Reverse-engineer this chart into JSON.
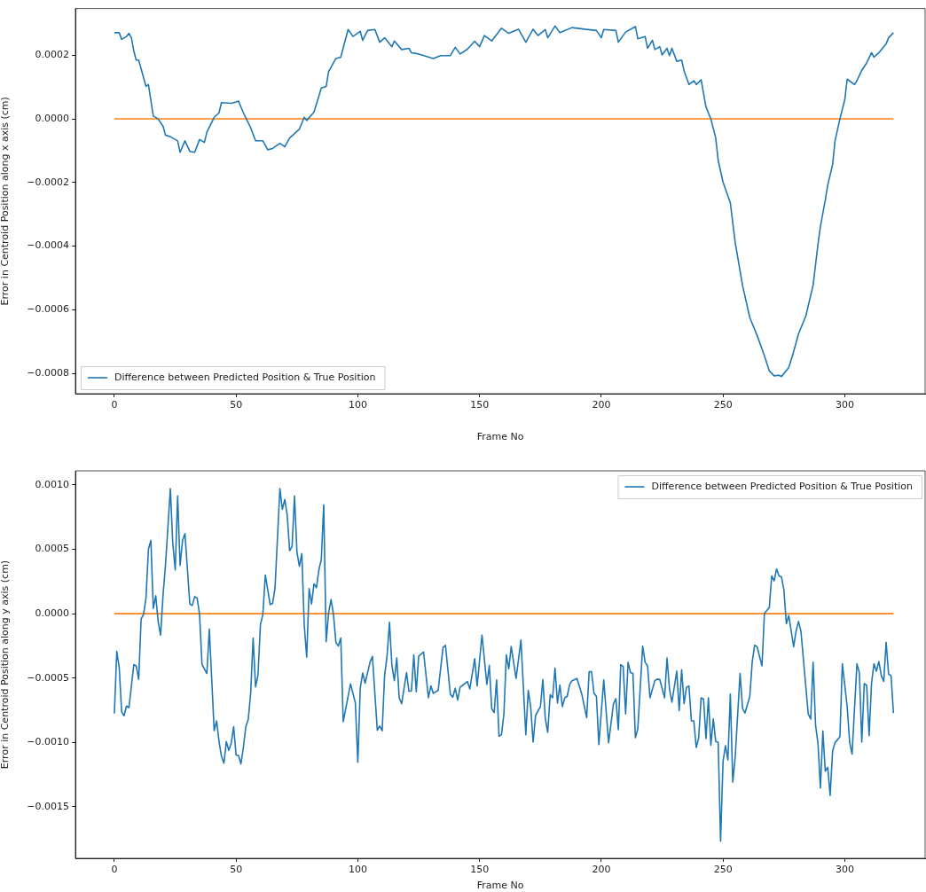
{
  "chart_data": [
    {
      "type": "line",
      "xlabel": "Frame No",
      "ylabel": "Error in Centroid Position along x axis (cm)",
      "legend": "bottom left",
      "xlim": [
        -16,
        333
      ],
      "ylim": [
        -0.000864,
        0.000347
      ],
      "xticks": [
        0,
        50,
        100,
        150,
        200,
        250,
        300
      ],
      "yticks": [
        {
          "value": -0.0008,
          "label": "−0.0008"
        },
        {
          "value": -0.0006,
          "label": "−0.0006"
        },
        {
          "value": -0.0004,
          "label": "−0.0004"
        },
        {
          "value": -0.0002,
          "label": "−0.0002"
        },
        {
          "value": 0,
          "label": "0.0000"
        },
        {
          "value": 0.0002,
          "label": "0.0002"
        }
      ],
      "series": [
        {
          "name": "Difference between Predicted Position & True Position",
          "color": "#1f77b4",
          "x": [
            0,
            2,
            3,
            5,
            6,
            7,
            8,
            9,
            10,
            13,
            14,
            16,
            18,
            20,
            21,
            23,
            26,
            27,
            29,
            31,
            33,
            35,
            37,
            38,
            41,
            43,
            44,
            48,
            50,
            51,
            53,
            56,
            58,
            61,
            63,
            65,
            68,
            70,
            72,
            76,
            78,
            79,
            82,
            85,
            87,
            88,
            91,
            93,
            96,
            98,
            101,
            102,
            104,
            107,
            109,
            111,
            114,
            115,
            118,
            121,
            122,
            125,
            131,
            134,
            138,
            140,
            142,
            145,
            148,
            150,
            152,
            155,
            159,
            162,
            166,
            169,
            172,
            174,
            177,
            178,
            181,
            183,
            188,
            193,
            198,
            200,
            201,
            206,
            207,
            210,
            214,
            215,
            218,
            219,
            221,
            222,
            224,
            225,
            227,
            228,
            229,
            231,
            233,
            234,
            236,
            238,
            239,
            241,
            243,
            245,
            247,
            248,
            250,
            253,
            255,
            258,
            261,
            264,
            267,
            269,
            271,
            273,
            274,
            277,
            279,
            281,
            284,
            287,
            289,
            290,
            292,
            293,
            295,
            296,
            298,
            300,
            301,
            304,
            305,
            307,
            309,
            311,
            312,
            314,
            317,
            318,
            320
          ],
          "values": [
            0.000271,
            0.000271,
            0.00025,
            0.000259,
            0.000269,
            0.000255,
            0.000213,
            0.000185,
            0.000185,
            0.000102,
            0.000108,
            9e-06,
            0,
            -2.3e-05,
            -5.1e-05,
            -5.6e-05,
            -6.9e-05,
            -0.000105,
            -6.9e-05,
            -0.000102,
            -0.000105,
            -6.5e-05,
            -7.4e-05,
            -4.2e-05,
            5e-06,
            1.9e-05,
            5.1e-05,
            4.9e-05,
            5.3e-05,
            5.6e-05,
            1.9e-05,
            -2.8e-05,
            -6.9e-05,
            -6.9e-05,
            -9.7e-05,
            -9.3e-05,
            -7.7e-05,
            -8.8e-05,
            -6e-05,
            -3.2e-05,
            5e-06,
            -5e-06,
            2.1e-05,
            9.7e-05,
            0.000102,
            0.000148,
            0.00019,
            0.000194,
            0.000281,
            0.000259,
            0.000275,
            0.000247,
            0.000278,
            0.000281,
            0.000241,
            0.000255,
            0.000227,
            0.000245,
            0.000218,
            0.000222,
            0.000208,
            0.000204,
            0.00019,
            0.000199,
            0.000199,
            0.000225,
            0.000204,
            0.000219,
            0.000244,
            0.000227,
            0.000262,
            0.000245,
            0.000285,
            0.000269,
            0.000282,
            0.000241,
            0.000282,
            0.000262,
            0.000281,
            0.000255,
            0.000292,
            0.000271,
            0.000287,
            0.000282,
            0.000278,
            0.000255,
            0.000281,
            0.000278,
            0.000241,
            0.000273,
            0.00029,
            0.000252,
            0.000259,
            0.000222,
            0.000247,
            0.000218,
            0.000227,
            0.000201,
            0.000222,
            0.000199,
            0.000222,
            0.000181,
            0.000185,
            0.000151,
            0.000108,
            0.00012,
            0.000108,
            0.000123,
            3.7e-05,
            0,
            -6e-05,
            -0.00013,
            -0.000199,
            -0.000264,
            -0.000389,
            -0.000523,
            -0.000625,
            -0.000681,
            -0.000745,
            -0.000792,
            -0.000808,
            -0.000806,
            -0.00081,
            -0.000782,
            -0.000732,
            -0.000676,
            -0.00062,
            -0.000523,
            -0.000394,
            -0.000338,
            -0.000255,
            -0.000208,
            -0.000144,
            -6.9e-05,
            0,
            6e-05,
            0.000125,
            0.000108,
            0.00012,
            0.000153,
            0.000176,
            0.000208,
            0.000194,
            0.000208,
            0.000236,
            0.000255,
            0.000271
          ]
        },
        {
          "color": "#ff7f0e",
          "x": [
            0,
            320
          ],
          "values": [
            0,
            0
          ]
        }
      ]
    },
    {
      "type": "line",
      "xlabel": "Frame No",
      "ylabel": "Error in Centroid Position along y axis (cm)",
      "legend": "top right",
      "xlim": [
        -16,
        333
      ],
      "ylim": [
        -0.0019,
        0.00111
      ],
      "xticks": [
        0,
        50,
        100,
        150,
        200,
        250,
        300
      ],
      "yticks": [
        {
          "value": -0.0015,
          "label": "−0.0015"
        },
        {
          "value": -0.001,
          "label": "−0.0010"
        },
        {
          "value": -0.0005,
          "label": "−0.0005"
        },
        {
          "value": 0,
          "label": "0.0000"
        },
        {
          "value": 0.0005,
          "label": "0.0005"
        },
        {
          "value": 0.001,
          "label": "0.0010"
        }
      ],
      "series": [
        {
          "name": "Difference between Predicted Position & True Position",
          "color": "#1f77b4",
          "x": [
            0,
            1,
            2,
            3,
            4,
            5,
            6,
            8,
            9,
            10,
            11,
            12,
            13,
            14,
            15,
            16,
            17,
            18,
            19,
            20,
            21,
            23,
            24,
            25,
            26,
            27,
            28,
            29,
            31,
            32,
            33,
            34,
            35,
            36,
            38,
            39,
            41,
            42,
            43,
            44,
            45,
            46,
            47,
            48,
            49,
            50,
            51,
            52,
            53,
            54,
            55,
            56,
            57,
            58,
            59,
            60,
            61,
            62,
            64,
            65,
            66,
            68,
            69,
            70,
            71,
            72,
            73,
            74,
            75,
            76,
            77,
            78,
            79,
            80,
            81,
            82,
            83,
            84,
            85,
            86,
            87,
            88,
            89,
            90,
            91,
            92,
            93,
            94,
            97,
            99,
            100,
            101,
            102,
            103,
            105,
            106,
            108,
            109,
            110,
            111,
            112,
            113,
            114,
            115,
            116,
            117,
            118,
            120,
            121,
            122,
            123,
            124,
            125,
            127,
            129,
            130,
            131,
            133,
            135,
            136,
            138,
            139,
            140,
            141,
            142,
            145,
            146,
            148,
            149,
            151,
            153,
            154,
            155,
            156,
            157,
            158,
            159,
            160,
            161,
            162,
            163,
            165,
            167,
            169,
            170,
            171,
            172,
            173,
            175,
            176,
            177,
            178,
            179,
            180,
            181,
            182,
            183,
            184,
            185,
            186,
            187,
            188,
            190,
            192,
            194,
            195,
            196,
            197,
            198,
            199,
            201,
            203,
            205,
            206,
            207,
            208,
            209,
            210,
            211,
            212,
            213,
            214,
            215,
            217,
            218,
            219,
            220,
            222,
            223,
            224,
            226,
            227,
            228,
            229,
            231,
            232,
            233,
            234,
            235,
            236,
            237,
            238,
            239,
            240,
            241,
            242,
            243,
            244,
            245,
            246,
            247,
            248,
            249,
            250,
            251,
            252,
            253,
            254,
            255,
            257,
            258,
            259,
            261,
            262,
            263,
            264,
            266,
            267,
            269,
            270,
            271,
            272,
            273,
            274,
            275,
            276,
            277,
            279,
            280,
            281,
            282,
            285,
            286,
            287,
            288,
            289,
            290,
            291,
            292,
            293,
            294,
            295,
            296,
            298,
            299,
            301,
            302,
            303,
            305,
            306,
            307,
            308,
            309,
            310,
            311,
            312,
            313,
            314,
            315,
            316,
            317,
            318,
            319,
            320
          ],
          "values": [
            -0.000775,
            -0.000292,
            -0.000418,
            -0.000763,
            -0.000793,
            -0.000717,
            -0.000729,
            -0.000395,
            -0.000407,
            -0.00051,
            -3.9e-05,
            -5e-06,
            0.000122,
            0.000501,
            0.00057,
            4.1e-05,
            0.00014,
            -6.2e-05,
            -0.000166,
            0.000145,
            0.000375,
            0.000972,
            0.000547,
            0.00034,
            0.000915,
            0.000375,
            0.00057,
            0.000623,
            7.6e-05,
            6.4e-05,
            0.000133,
            0.000122,
            -5e-06,
            -0.000395,
            -0.000464,
            -0.00012,
            -0.000908,
            -0.000832,
            -0.000993,
            -0.001108,
            -0.001161,
            -0.000993,
            -0.001062,
            -0.001005,
            -0.000878,
            -0.001097,
            -0.001101,
            -0.001166,
            -0.001039,
            -0.000878,
            -0.000821,
            -0.000614,
            -0.000189,
            -0.000568,
            -0.000476,
            -8.5e-05,
            -5e-06,
            0.000301,
            7.1e-05,
            8e-05,
            0.000202,
            0.000972,
            0.000812,
            0.000887,
            0.000766,
            0.00049,
            0.000524,
            0.000915,
            0.000478,
            0.000368,
            0.000467,
            -9e-05,
            -0.000338,
            0.000195,
            7.6e-05,
            0.000232,
            0.000202,
            0.00034,
            0.000421,
            0.000846,
            -0.000218,
            7e-06,
            0.00011,
            -5e-06,
            -0.000223,
            -0.000251,
            -0.000189,
            -0.000839,
            -0.000545,
            -0.000694,
            -0.001154,
            -0.000579,
            -0.00046,
            -0.00054,
            -0.000377,
            -0.000331,
            -0.000906,
            -0.000871,
            -0.00091,
            -0.00048,
            -0.000331,
            -6.7e-05,
            -0.0004,
            -0.00052,
            -0.000343,
            -0.000653,
            -0.000699,
            -0.000457,
            -0.000602,
            -0.000602,
            -0.00032,
            -0.000607,
            -0.000331,
            -0.000297,
            -0.000653,
            -0.000561,
            -0.000618,
            -0.000595,
            -0.000262,
            -0.000246,
            -0.000625,
            -0.000648,
            -0.000579,
            -0.000671,
            -0.000572,
            -0.000526,
            -0.000584,
            -0.000349,
            -0.000561,
            -0.000166,
            -0.000549,
            -0.0004,
            -0.000738,
            -0.000768,
            -0.000515,
            -0.000952,
            -0.00094,
            -0.000779,
            -0.00032,
            -0.000428,
            -0.000255,
            -0.000503,
            -0.000205,
            -0.00094,
            -0.000595,
            -0.000722,
            -0.000998,
            -0.000791,
            -0.000722,
            -0.00051,
            -0.000814,
            -0.000922,
            -0.00063,
            -0.000653,
            -0.000423,
            -0.000694,
            -0.000554,
            -0.000722,
            -0.000653,
            -0.000641,
            -0.000549,
            -0.00052,
            -0.000503,
            -0.000625,
            -0.000807,
            -0.000451,
            -0.000451,
            -0.000618,
            -0.000641,
            -0.001016,
            -0.000515,
            -0.001002,
            -0.000699,
            -0.00066,
            -0.000901,
            -0.000395,
            -0.000412,
            -0.000779,
            -0.000377,
            -0.000457,
            -0.000464,
            -0.000963,
            -0.000894,
            -0.000251,
            -0.000377,
            -0.000405,
            -0.000653,
            -0.00052,
            -0.000508,
            -0.00051,
            -0.000653,
            -0.000343,
            -0.000584,
            -0.000687,
            -0.000446,
            -0.000752,
            -0.000435,
            -0.000699,
            -0.000572,
            -0.000561,
            -0.000832,
            -0.000832,
            -0.001039,
            -0.000963,
            -0.000653,
            -0.000664,
            -0.00097,
            -0.000653,
            -0.001021,
            -0.000818,
            -0.000993,
            -0.000998,
            -0.001768,
            -0.001147,
            -0.001025,
            -0.001136,
            -0.000625,
            -0.001308,
            -0.001113,
            -0.000464,
            -0.000733,
            -0.000772,
            -0.000641,
            -0.000372,
            -0.000244,
            -0.000257,
            -0.000405,
            2e-06,
            4.8e-05,
            0.000294,
            0.000255,
            0.000347,
            0.000294,
            0.000285,
            0.000186,
            -7.8e-05,
            -1.4e-05,
            -0.000257,
            -0.000136,
            -6e-05,
            -0.000136,
            -0.000779,
            -0.000818,
            -0.000377,
            -0.000864,
            -0.001009,
            -0.001354,
            -0.00091,
            -0.001223,
            -0.001193,
            -0.001412,
            -0.001067,
            -0.001002,
            -0.000956,
            -0.000389,
            -0.000722,
            -0.000998,
            -0.00109,
            -0.000389,
            -0.000458,
            -0.000998,
            -0.000543,
            -0.000556,
            -0.000947,
            -0.000538,
            -0.000389,
            -0.000446,
            -0.000372,
            -0.00048,
            -0.000526,
            -0.000221,
            -0.000469,
            -0.00048,
            -0.000772
          ]
        },
        {
          "color": "#ff7f0e",
          "x": [
            0,
            320
          ],
          "values": [
            0,
            0
          ]
        }
      ]
    }
  ]
}
